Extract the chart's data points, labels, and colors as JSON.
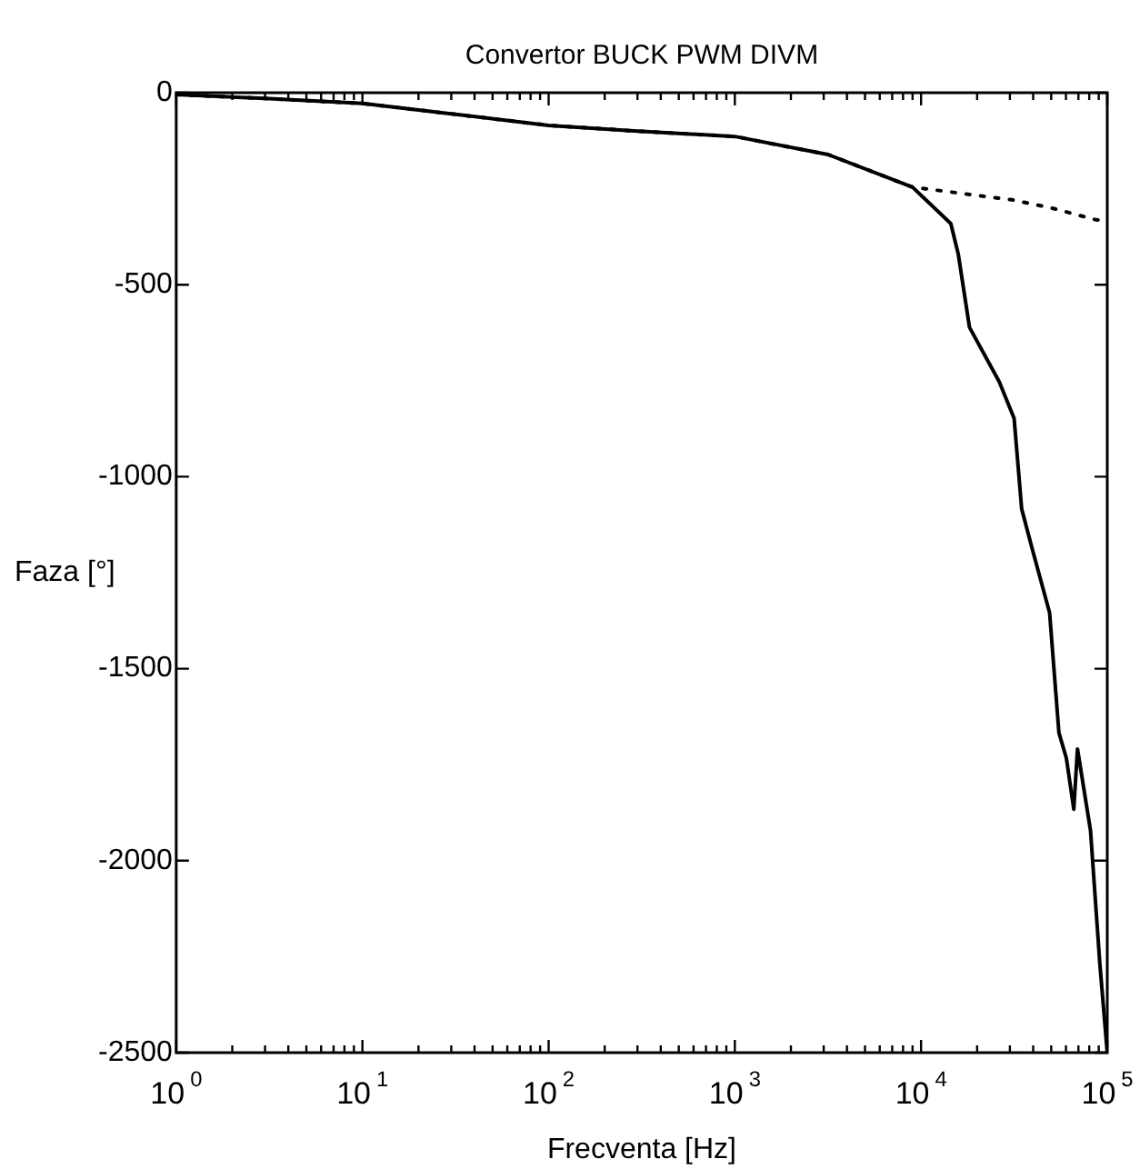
{
  "chart_data": {
    "type": "line",
    "title": "Convertor BUCK PWM DIVM",
    "xlabel": "Frecventa [Hz]",
    "ylabel": "Faza [°]",
    "log": "x",
    "marker": "none",
    "xlim": [
      1,
      100000
    ],
    "ylim": [
      -2500,
      0
    ],
    "xticks": [
      {
        "value": 1,
        "label": "10$^{0}$"
      },
      {
        "value": 10,
        "label": "10$^{1}$"
      },
      {
        "value": 100,
        "label": "10$^{2}$"
      },
      {
        "value": 1000,
        "label": "10$^{3}$"
      },
      {
        "value": 10000,
        "label": "10$^{4}$"
      },
      {
        "value": 100000,
        "label": "10$^{5}$"
      }
    ],
    "yticks": [
      0,
      -500,
      -1000,
      -1500,
      -2000,
      -2500
    ],
    "series": [
      {
        "color": "#000000",
        "line_style": "solid",
        "x": [
          1,
          3,
          10,
          30,
          100,
          300,
          1000,
          3162,
          9000,
          14450,
          15850,
          18200,
          26300,
          31600,
          34700,
          39800,
          49000,
          55000,
          60300,
          66100,
          69200,
          81300,
          91200,
          100000
        ],
        "values": [
          -5,
          -15,
          -28,
          -55,
          -85,
          -100,
          -114,
          -161,
          -246,
          -341,
          -421,
          -611,
          -753,
          -848,
          -1084,
          -1193,
          -1354,
          -1667,
          -1733,
          -1866,
          -1709,
          -1922,
          -2268,
          -2500
        ]
      },
      {
        "color": "#000000",
        "line_style": "dotted",
        "x": [
          1,
          3,
          10,
          30,
          100,
          300,
          1000,
          3162,
          9000,
          30900,
          50000,
          87000,
          100000
        ],
        "values": [
          -5,
          -15,
          -28,
          -55,
          -85,
          -100,
          -114,
          -161,
          -246,
          -279,
          -300,
          -331,
          -335
        ]
      }
    ]
  }
}
